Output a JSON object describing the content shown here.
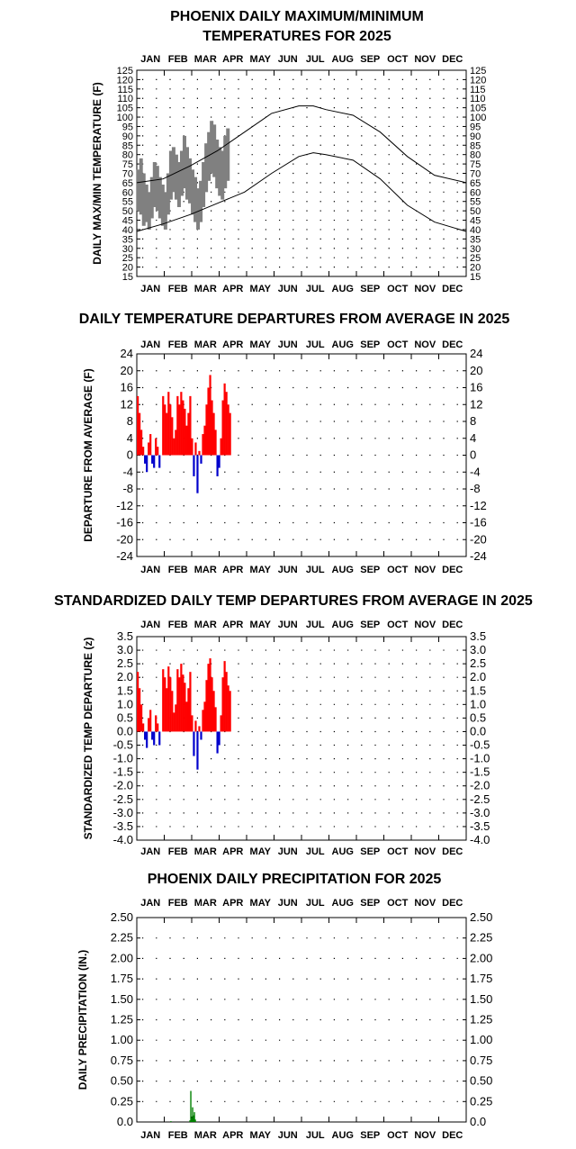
{
  "colors": {
    "warm": "#ff0000",
    "cold": "#0000cc",
    "range": "#808080",
    "precip": "#008000",
    "normal": "#000000"
  },
  "chart_data": [
    {
      "type": "area",
      "title_lines": [
        "PHOENIX DAILY MAXIMUM/MINIMUM",
        "TEMPERATURES FOR 2025"
      ],
      "ylabel": "DAILY MAX/MIN TEMPERATURE (F)",
      "months": [
        "JAN",
        "FEB",
        "MAR",
        "APR",
        "MAY",
        "JUN",
        "JUL",
        "AUG",
        "SEP",
        "OCT",
        "NOV",
        "DEC"
      ],
      "ylim": [
        15,
        125
      ],
      "yticks": [
        125,
        120,
        115,
        110,
        105,
        100,
        95,
        90,
        85,
        80,
        75,
        70,
        65,
        60,
        55,
        50,
        45,
        40,
        35,
        30,
        25,
        20,
        15
      ],
      "normal_high": {
        "day": [
          1,
          30,
          60,
          90,
          120,
          150,
          180,
          196,
          210,
          240,
          270,
          300,
          330,
          365
        ],
        "value": [
          65,
          67,
          74,
          82,
          92,
          102,
          106,
          106,
          104,
          101,
          92,
          79,
          69,
          65
        ]
      },
      "normal_low": {
        "day": [
          1,
          30,
          60,
          90,
          120,
          150,
          180,
          196,
          210,
          240,
          270,
          300,
          330,
          365
        ],
        "value": [
          39,
          43,
          48,
          54,
          60,
          70,
          79,
          81,
          80,
          77,
          67,
          53,
          44,
          39
        ]
      },
      "observed": {
        "day": [
          1,
          4,
          7,
          10,
          13,
          16,
          19,
          22,
          25,
          28,
          31,
          34,
          37,
          40,
          43,
          46,
          49,
          52,
          55,
          58,
          61,
          64,
          67,
          70,
          73,
          76,
          79,
          82,
          85,
          88,
          91,
          94,
          97,
          100
        ],
        "high": [
          72,
          78,
          70,
          64,
          60,
          68,
          76,
          74,
          68,
          64,
          60,
          70,
          82,
          84,
          80,
          76,
          82,
          90,
          84,
          78,
          72,
          68,
          62,
          66,
          76,
          86,
          92,
          98,
          96,
          88,
          84,
          82,
          90,
          94
        ],
        "low": [
          50,
          48,
          42,
          44,
          40,
          46,
          52,
          50,
          46,
          42,
          40,
          48,
          56,
          60,
          56,
          52,
          58,
          62,
          56,
          54,
          48,
          44,
          40,
          44,
          52,
          60,
          66,
          70,
          68,
          62,
          58,
          56,
          62,
          66
        ]
      }
    },
    {
      "type": "bar",
      "title": "DAILY TEMPERATURE DEPARTURES FROM AVERAGE IN 2025",
      "ylabel": "DEPARTURE FROM AVERAGE (F)",
      "months": [
        "JAN",
        "FEB",
        "MAR",
        "APR",
        "MAY",
        "JUN",
        "JUL",
        "AUG",
        "SEP",
        "OCT",
        "NOV",
        "DEC"
      ],
      "ylim": [
        -24,
        24
      ],
      "yticks": [
        24,
        20,
        16,
        12,
        8,
        4,
        0,
        -4,
        -8,
        -12,
        -16,
        -20,
        -24
      ],
      "x": [
        1,
        3,
        5,
        7,
        9,
        11,
        13,
        15,
        17,
        19,
        21,
        23,
        25,
        27,
        29,
        31,
        33,
        35,
        37,
        39,
        41,
        43,
        45,
        47,
        49,
        51,
        53,
        55,
        57,
        59,
        61,
        63,
        65,
        67,
        69,
        71,
        73,
        75,
        77,
        79,
        81,
        83,
        85,
        87,
        89,
        91,
        93,
        95,
        97,
        99,
        101,
        103
      ],
      "values": [
        14,
        10,
        6,
        2,
        -2,
        -4,
        3,
        5,
        -2,
        -3,
        4,
        2,
        -3,
        0,
        14,
        12,
        10,
        15,
        12,
        9,
        4,
        6,
        14,
        12,
        15,
        13,
        11,
        7,
        10,
        14,
        4,
        -5,
        3,
        -9,
        1,
        -2,
        5,
        7,
        12,
        16,
        19,
        13,
        10,
        6,
        -5,
        -3,
        4,
        13,
        17,
        15,
        12,
        10
      ]
    },
    {
      "type": "bar",
      "title": "STANDARDIZED DAILY TEMP DEPARTURES FROM AVERAGE IN 2025",
      "ylabel": "STANDARDIZED TEMP DEPARTURE (z)",
      "months": [
        "JAN",
        "FEB",
        "MAR",
        "APR",
        "MAY",
        "JUN",
        "JUL",
        "AUG",
        "SEP",
        "OCT",
        "NOV",
        "DEC"
      ],
      "ylim": [
        -4.0,
        3.5
      ],
      "yticks": [
        "3.5",
        "3.0",
        "2.5",
        "2.0",
        "1.5",
        "1.0",
        "0.5",
        "0.0",
        "-0.5",
        "-1.0",
        "-1.5",
        "-2.0",
        "-2.5",
        "-3.0",
        "-3.5",
        "-4.0"
      ],
      "x": [
        1,
        3,
        5,
        7,
        9,
        11,
        13,
        15,
        17,
        19,
        21,
        23,
        25,
        27,
        29,
        31,
        33,
        35,
        37,
        39,
        41,
        43,
        45,
        47,
        49,
        51,
        53,
        55,
        57,
        59,
        61,
        63,
        65,
        67,
        69,
        71,
        73,
        75,
        77,
        79,
        81,
        83,
        85,
        87,
        89,
        91,
        93,
        95,
        97,
        99,
        101,
        103
      ],
      "values": [
        2.2,
        1.6,
        1.0,
        0.3,
        -0.3,
        -0.6,
        0.5,
        0.8,
        -0.3,
        -0.5,
        0.6,
        0.3,
        -0.5,
        0.0,
        2.3,
        2.0,
        1.6,
        2.4,
        2.0,
        1.5,
        0.7,
        1.0,
        2.3,
        2.0,
        2.5,
        2.1,
        1.8,
        1.1,
        1.6,
        2.2,
        0.6,
        -0.9,
        0.4,
        -1.4,
        0.2,
        -0.3,
        0.8,
        1.1,
        1.9,
        2.5,
        2.7,
        2.0,
        1.5,
        0.9,
        -0.8,
        -0.5,
        0.6,
        2.0,
        2.6,
        2.2,
        1.7,
        1.5
      ]
    },
    {
      "type": "bar",
      "title": "PHOENIX DAILY PRECIPITATION FOR 2025",
      "ylabel": "DAILY PRECIPITATION (IN.)",
      "months": [
        "JAN",
        "FEB",
        "MAR",
        "APR",
        "MAY",
        "JUN",
        "JUL",
        "AUG",
        "SEP",
        "OCT",
        "NOV",
        "DEC"
      ],
      "ylim": [
        0,
        2.5
      ],
      "yticks": [
        "2.50",
        "2.25",
        "2.00",
        "1.75",
        "1.50",
        "1.25",
        "1.00",
        "0.75",
        "0.50",
        "0.25",
        "0.0"
      ],
      "x": [
        38,
        59,
        60,
        61,
        62,
        63,
        64,
        65
      ],
      "values": [
        0.01,
        0.02,
        0.38,
        0.05,
        0.18,
        0.08,
        0.12,
        0.03
      ]
    }
  ]
}
